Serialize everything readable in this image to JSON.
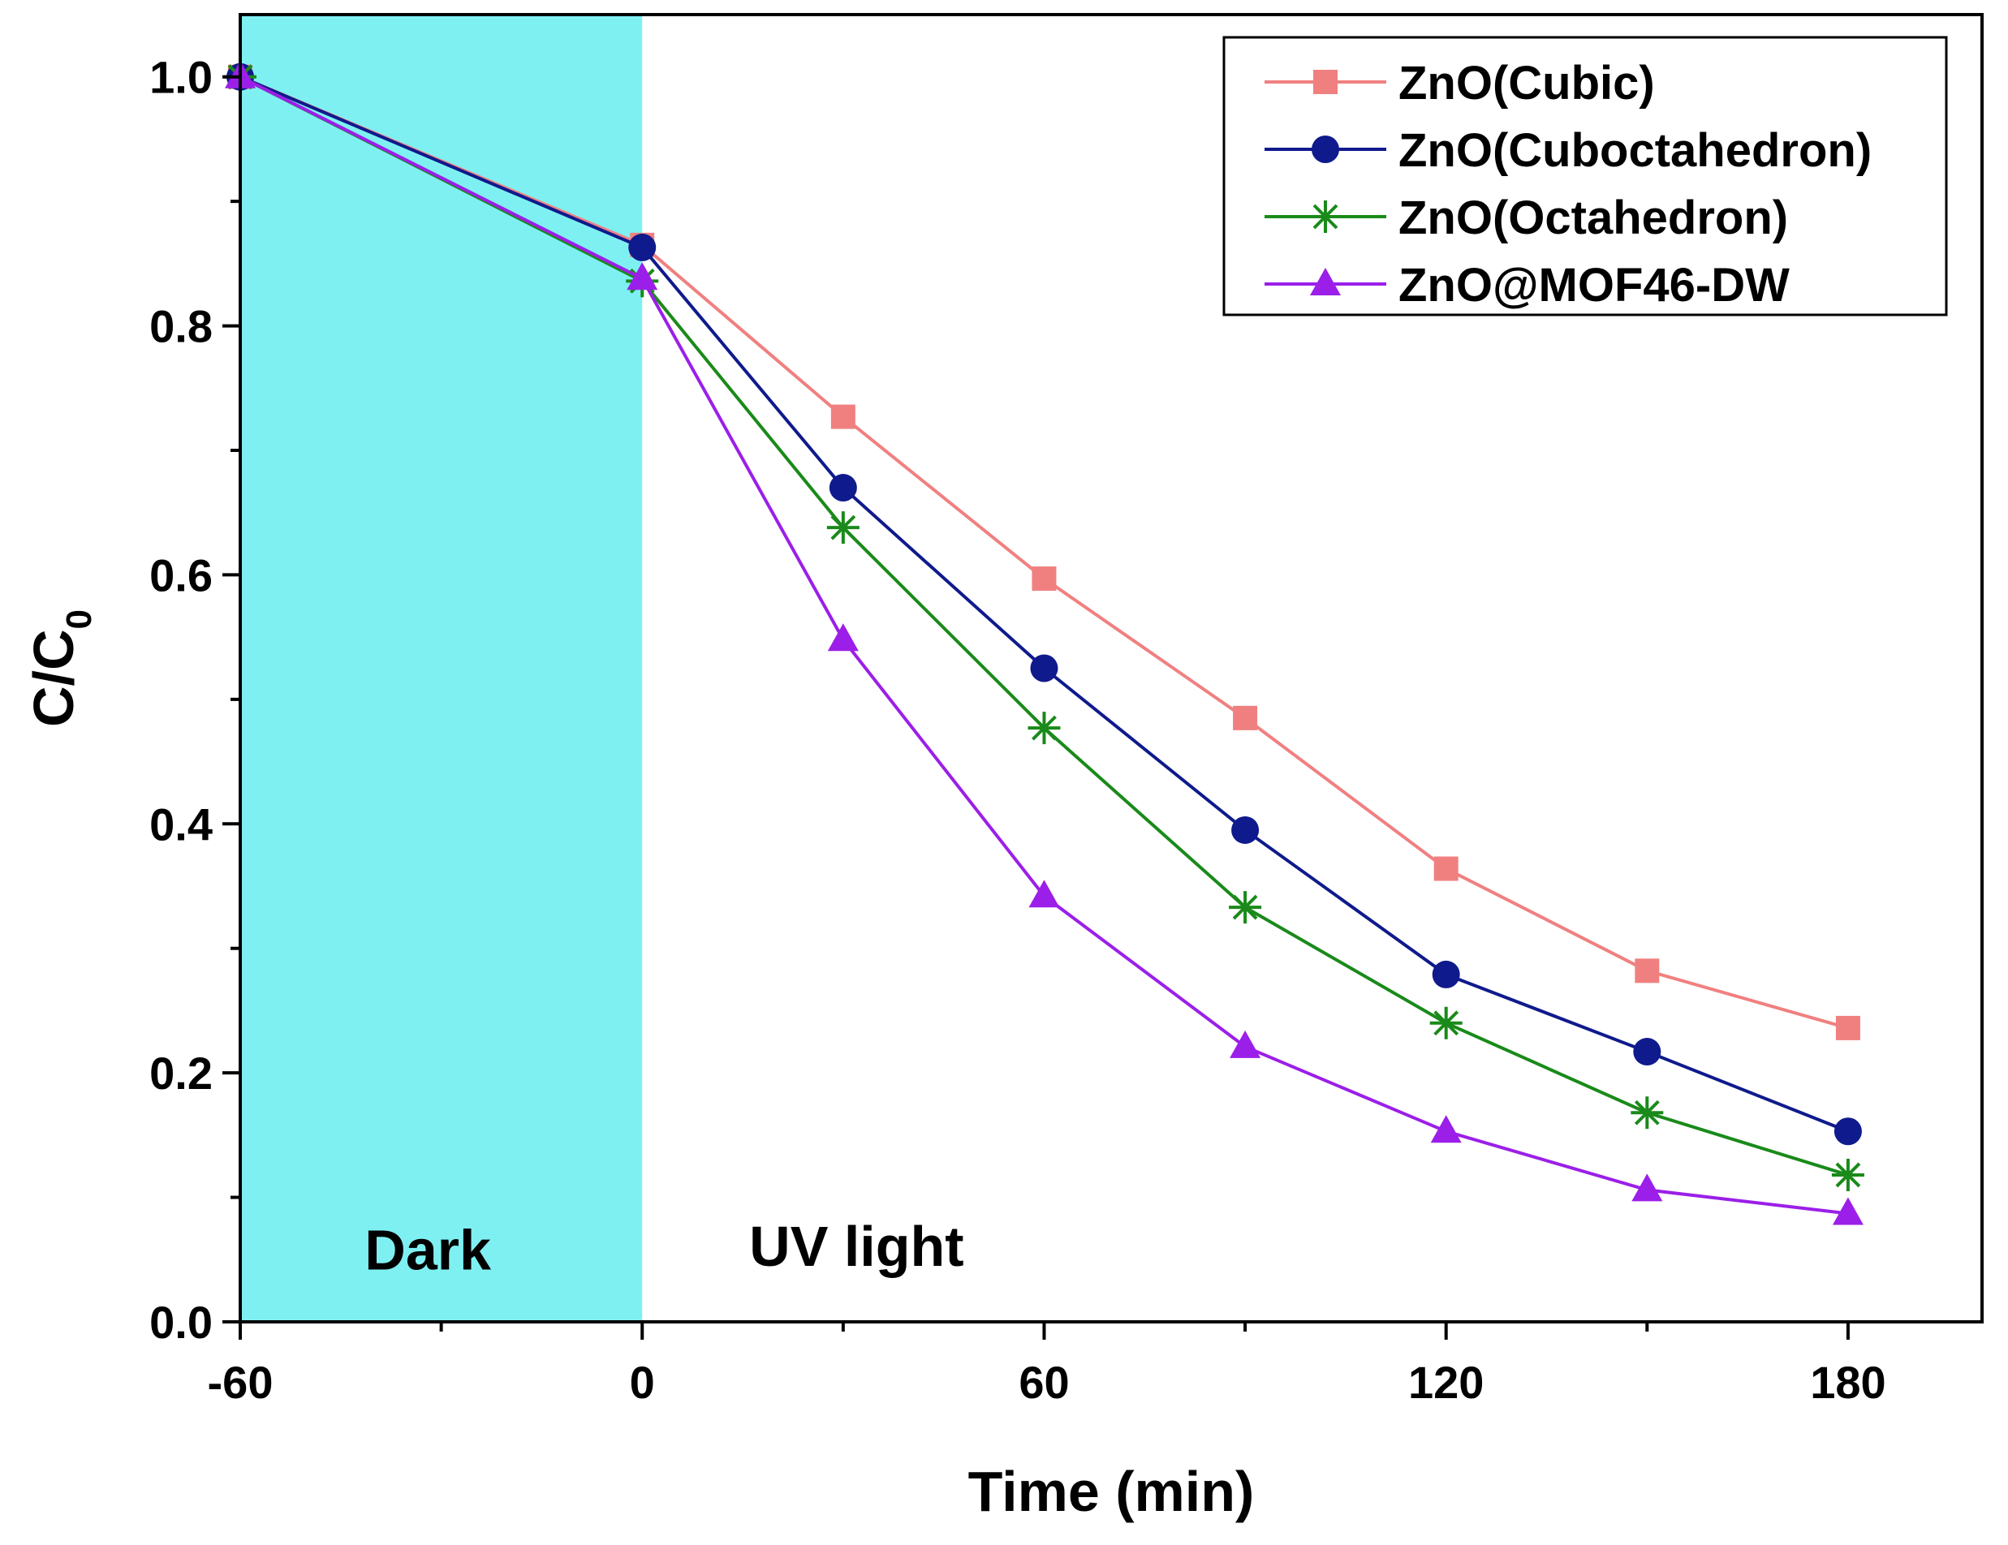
{
  "chart_data": {
    "type": "line",
    "xlabel": "Time (min)",
    "ylabel": "C/C",
    "ylabel_subscript": "0",
    "xlim": [
      -60,
      200
    ],
    "ylim": [
      0,
      1.05
    ],
    "x_ticks": [
      -60,
      0,
      60,
      120,
      180
    ],
    "x_tick_labels": [
      "-60",
      "0",
      "60",
      "120",
      "180"
    ],
    "x_minor_ticks": [
      -30,
      30,
      90,
      150
    ],
    "y_ticks": [
      0.0,
      0.2,
      0.4,
      0.6,
      0.8,
      1.0
    ],
    "y_tick_labels": [
      "0.0",
      "0.2",
      "0.4",
      "0.6",
      "0.8",
      "1.0"
    ],
    "y_minor_ticks": [
      0.1,
      0.3,
      0.5,
      0.7,
      0.9
    ],
    "shaded_region": {
      "x_start": -60,
      "x_end": 0,
      "color": "#7ff0f2",
      "label": "Dark"
    },
    "region_labels": {
      "dark": "Dark",
      "uv": "UV light"
    },
    "legend_position": "top-right",
    "x": [
      -60,
      0,
      30,
      60,
      90,
      120,
      150,
      180
    ],
    "series": [
      {
        "name": "ZnO(Cubic)",
        "marker": "square",
        "color": "#f08080",
        "values": [
          1.0,
          0.865,
          0.727,
          0.597,
          0.485,
          0.364,
          0.282,
          0.236
        ]
      },
      {
        "name": "ZnO(Cuboctahedron)",
        "marker": "circle",
        "color": "#0f1a8c",
        "values": [
          1.0,
          0.863,
          0.67,
          0.525,
          0.395,
          0.279,
          0.217,
          0.153
        ]
      },
      {
        "name": "ZnO(Octahedron)",
        "marker": "star",
        "color": "#1a8a1a",
        "values": [
          1.0,
          0.836,
          0.638,
          0.477,
          0.333,
          0.24,
          0.168,
          0.118
        ]
      },
      {
        "name": "ZnO@MOF46-DW",
        "marker": "triangle",
        "color": "#9b1fe8",
        "values": [
          1.0,
          0.838,
          0.548,
          0.342,
          0.221,
          0.153,
          0.106,
          0.087
        ]
      }
    ]
  }
}
